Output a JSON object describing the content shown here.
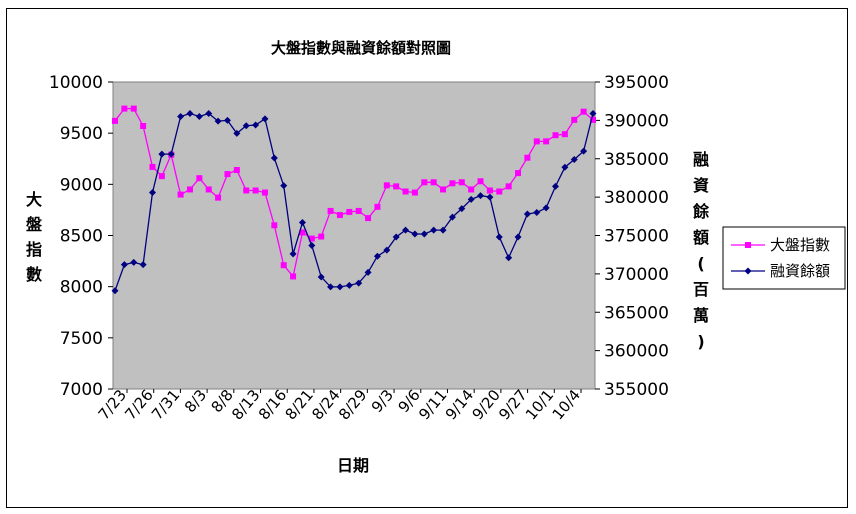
{
  "chart_data": {
    "type": "line",
    "title": "大盤指數與融資餘額對照圖",
    "xlabel": "日期",
    "ylabel_left": "大盤指數",
    "ylabel_right": "融資餘額(百萬)",
    "ylim_left": [
      7000,
      10000
    ],
    "yticks_left": [
      "7000",
      "7500",
      "8000",
      "8500",
      "9000",
      "9500",
      "10000"
    ],
    "ylim_right": [
      355000,
      395000
    ],
    "yticks_right": [
      "355000",
      "360000",
      "365000",
      "370000",
      "375000",
      "380000",
      "385000",
      "390000",
      "395000"
    ],
    "x_tick_labels": [
      "7/23",
      "7/26",
      "7/31",
      "8/3",
      "8/8",
      "8/13",
      "8/16",
      "8/21",
      "8/24",
      "8/29",
      "9/3",
      "9/6",
      "9/11",
      "9/14",
      "9/20",
      "9/27",
      "10/1",
      "10/4"
    ],
    "legend_position": "right",
    "series": [
      {
        "name": "大盤指數",
        "axis": "left",
        "color": "#ff00ff",
        "marker": "square",
        "values": [
          9620,
          9740,
          9740,
          9570,
          9170,
          9080,
          9290,
          8900,
          8950,
          9060,
          8950,
          8870,
          9100,
          9140,
          8940,
          8940,
          8920,
          8600,
          8210,
          8100,
          8530,
          8470,
          8490,
          8740,
          8700,
          8730,
          8740,
          8670,
          8780,
          8990,
          8980,
          8930,
          8920,
          9020,
          9020,
          8950,
          9010,
          9020,
          8950,
          9030,
          8940,
          8930,
          8980,
          9110,
          9260,
          9420,
          9420,
          9480,
          9490,
          9630,
          9710,
          9630
        ]
      },
      {
        "name": "融資餘額",
        "axis": "right",
        "color": "#000080",
        "marker": "diamond",
        "values": [
          367800,
          371200,
          371500,
          371200,
          380600,
          385600,
          385600,
          390500,
          390900,
          390500,
          390900,
          389900,
          390000,
          388300,
          389300,
          389400,
          390200,
          385100,
          381500,
          372600,
          376700,
          373700,
          369600,
          368300,
          368300,
          368500,
          368800,
          370200,
          372300,
          373100,
          374800,
          375700,
          375200,
          375200,
          375700,
          375700,
          377400,
          378500,
          379700,
          380200,
          380000,
          374800,
          372100,
          374800,
          377800,
          378000,
          378600,
          381400,
          383900,
          384900,
          386000,
          390900
        ]
      }
    ]
  }
}
